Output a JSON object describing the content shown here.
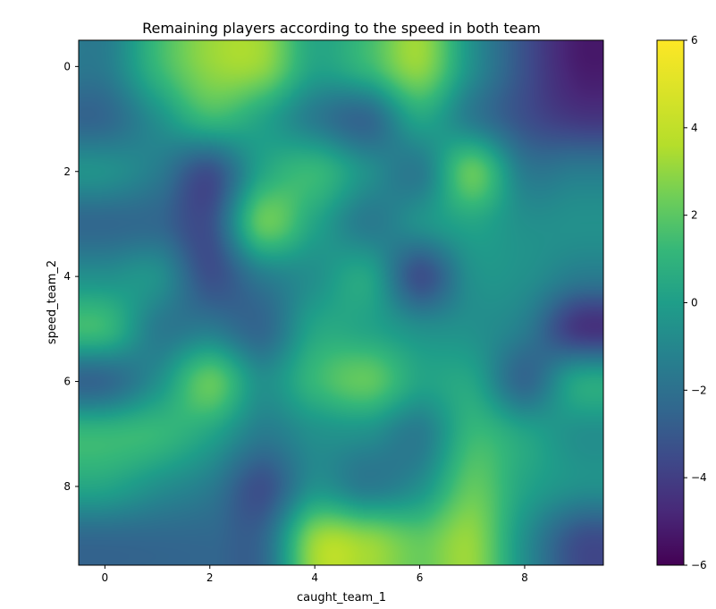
{
  "chart_data": {
    "type": "heatmap",
    "title": "Remaining players according to the speed in both team",
    "xlabel": "caught_team_1",
    "ylabel": "speed_team_2",
    "x_ticks": [
      0,
      2,
      4,
      6,
      8
    ],
    "y_ticks": [
      0,
      2,
      4,
      6,
      8
    ],
    "xlim": [
      -0.5,
      9.5
    ],
    "ylim": [
      9.5,
      -0.5
    ],
    "interpolation": "smooth (bicubic-like)",
    "colormap": "viridis",
    "colorbar": {
      "min": -6,
      "max": 6,
      "ticks": [
        -6,
        -4,
        -2,
        0,
        2,
        4,
        6
      ]
    },
    "grid": false,
    "values": [
      [
        -1,
        2,
        4,
        4,
        1,
        2,
        4,
        0,
        -3,
        -5
      ],
      [
        -2,
        0,
        2,
        1,
        -1,
        -2,
        1,
        -1,
        -3,
        -4
      ],
      [
        0,
        -1,
        -3,
        1,
        2,
        0,
        -1,
        3,
        -1,
        -1
      ],
      [
        -2,
        -2,
        -3,
        3,
        1,
        -1,
        0,
        1,
        0,
        0
      ],
      [
        0,
        0,
        -3,
        -1,
        0,
        1,
        -3,
        0,
        0,
        -1
      ],
      [
        2,
        -1,
        -1,
        -2,
        1,
        1,
        0,
        0,
        -1,
        -4
      ],
      [
        -2,
        0,
        3,
        0,
        2,
        3,
        1,
        1,
        -2,
        1
      ],
      [
        2,
        2,
        1,
        -1,
        0,
        0,
        -1,
        2,
        1,
        0
      ],
      [
        1,
        0,
        -1,
        -3,
        0,
        -1,
        0,
        3,
        1,
        0
      ],
      [
        -2,
        -2,
        -2,
        -2,
        4,
        4,
        3,
        4,
        0,
        -3
      ]
    ]
  }
}
